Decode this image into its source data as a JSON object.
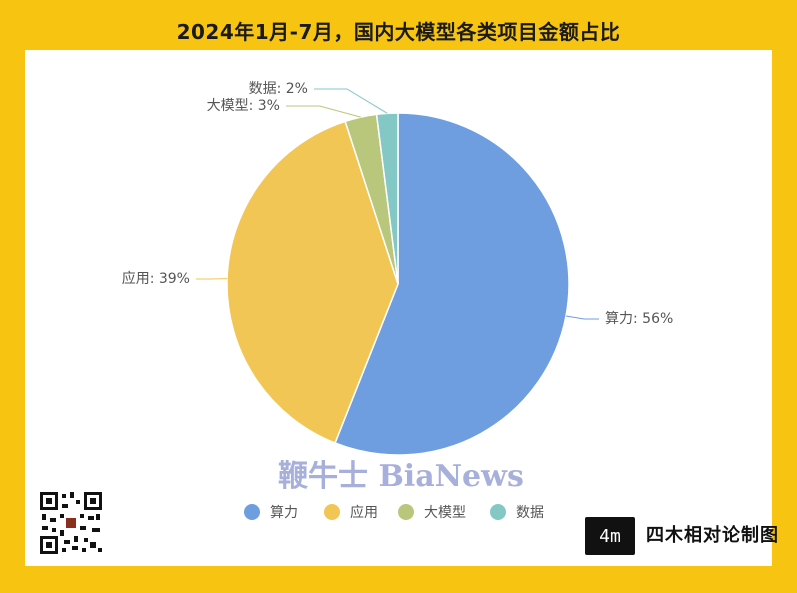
{
  "page": {
    "title": "2024年1月-7月，国内大模型各类项目金额占比",
    "watermark": "鞭牛士 BiaNews",
    "logo_mark": "4m",
    "logo_text": "四木相对论制图"
  },
  "colors": {
    "frame": "#f7c411",
    "panel": "#ffffff"
  },
  "chart_data": {
    "type": "pie",
    "title": "2024年1月-7月，国内大模型各类项目金额占比",
    "legend_position": "bottom",
    "slices": [
      {
        "name": "算力",
        "value": 56,
        "label": "算力: 56%",
        "color": "#6e9de0"
      },
      {
        "name": "应用",
        "value": 39,
        "label": "应用: 39%",
        "color": "#f2c655"
      },
      {
        "name": "大模型",
        "value": 3,
        "label": "大模型: 3%",
        "color": "#b8c77c"
      },
      {
        "name": "数据",
        "value": 2,
        "label": "数据: 2%",
        "color": "#83c8c4"
      }
    ]
  }
}
